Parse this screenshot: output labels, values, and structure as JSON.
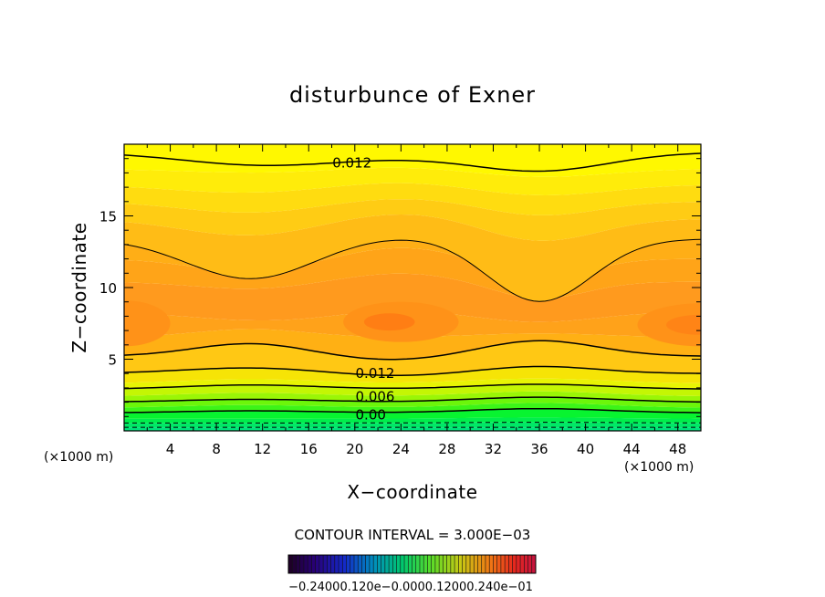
{
  "chart_data": {
    "type": "contour",
    "title": "disturbunce of Exner",
    "xlabel": "X−coordinate",
    "ylabel": "Z−coordinate",
    "x_unit": "(×1000 m)",
    "y_unit": "(×1000 m)",
    "xlim": [
      0,
      50
    ],
    "ylim": [
      0,
      20
    ],
    "x_ticks": [
      4,
      8,
      12,
      16,
      20,
      24,
      28,
      32,
      36,
      40,
      44,
      48
    ],
    "x_tick_labels": [
      "4",
      "8",
      "12",
      "16",
      "20",
      "24",
      "28",
      "32",
      "36",
      "40",
      "44",
      "48"
    ],
    "y_ticks": [
      5,
      10,
      15
    ],
    "y_tick_labels": [
      "5",
      "10",
      "15"
    ],
    "contour_interval_text": "CONTOUR INTERVAL =  3.000E−03",
    "contour_labels": [
      {
        "text": "0.012",
        "x": 16,
        "z": 18.7
      },
      {
        "text": "0.012",
        "x": 18,
        "z": 4.0
      },
      {
        "text": "0.006",
        "x": 18,
        "z": 2.4
      },
      {
        "text": "0.00",
        "x": 18,
        "z": 1.1
      }
    ],
    "colorbar_labels": [
      "−0.240",
      "−0.120",
      "0.000",
      "0.120",
      "0.240"
    ],
    "colorbar_text": "−0.24000.120e−0.0000.12000.240e−01",
    "field_description_levels_min": -0.006,
    "field_description_levels_max": 0.024
  }
}
